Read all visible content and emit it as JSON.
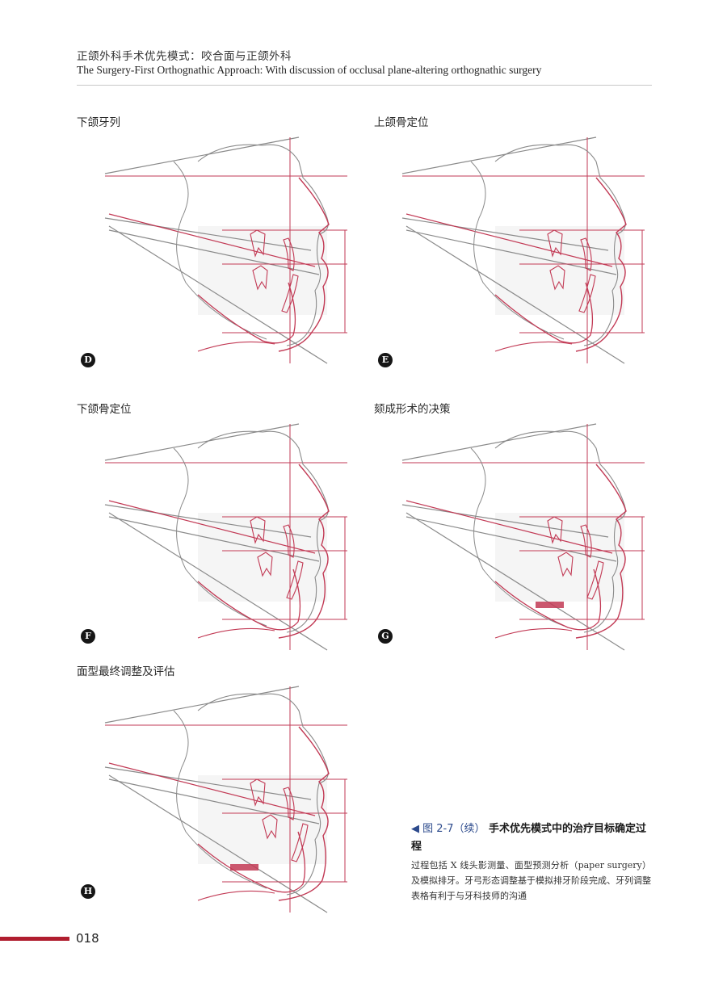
{
  "header": {
    "title_cn": "正颌外科手术优先模式：咬合面与正颌外科",
    "title_en": "The Surgery-First Orthognathic Approach: With discussion of occlusal plane-altering orthognathic surgery"
  },
  "panels": [
    {
      "id": "D",
      "title": "下颌牙列",
      "badge": "D"
    },
    {
      "id": "E",
      "title": "上颌骨定位",
      "badge": "E"
    },
    {
      "id": "F",
      "title": "下颌骨定位",
      "badge": "F"
    },
    {
      "id": "G",
      "title": "颏成形术的决策",
      "badge": "G"
    },
    {
      "id": "H",
      "title": "面型最终调整及评估",
      "badge": "H"
    }
  ],
  "caption": {
    "figure_label": "◀ 图 2-7（续）",
    "title": "手术优先模式中的治疗目标确定过程",
    "body": "过程包括 X 线头影测量、面型预测分析（paper surgery）及模拟排牙。牙弓形态调整基于模拟排牙阶段完成、牙列调整表格有利于与牙科技师的沟通"
  },
  "page_number": "018",
  "colors": {
    "accent_red": "#b01e2f",
    "trace_red": "#c23a55",
    "trace_gray": "#8a8a8a",
    "caption_blue": "#2c4a8c"
  }
}
